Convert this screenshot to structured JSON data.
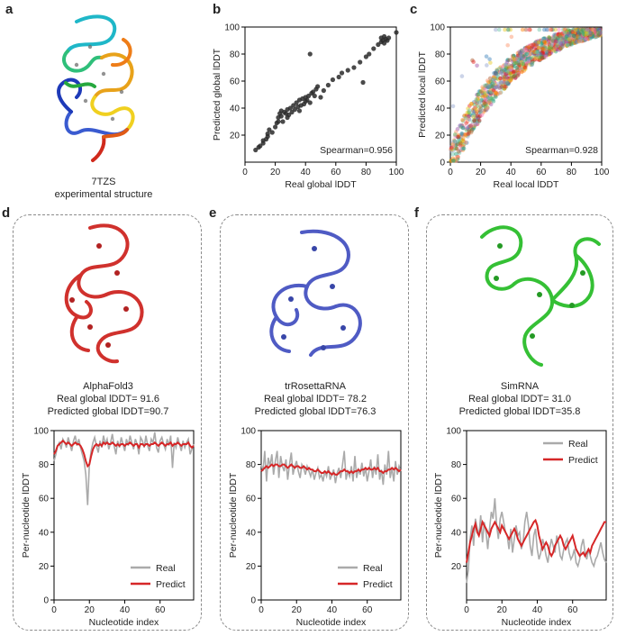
{
  "labels": {
    "a": "a",
    "b": "b",
    "c": "c",
    "d": "d",
    "e": "e",
    "f": "f"
  },
  "structure_a": {
    "line1": "7TZS",
    "line2": "experimental structure"
  },
  "models": [
    {
      "name": "AlphaFold3",
      "real": "Real global lDDT= 91.6",
      "pred": "Predicted global lDDT=90.7"
    },
    {
      "name": "trRosettaRNA",
      "real": "Real global lDDT= 78.2",
      "pred": "Predicted global lDDT=76.3"
    },
    {
      "name": "SimRNA",
      "real": "Real global lDDT= 31.0",
      "pred": "Predicted global lDDT=35.8"
    }
  ],
  "colors": {
    "real": "#aaaaaa",
    "predict": "#d62728",
    "alphafold": "#d0312d",
    "trrosetta": "#5560c8",
    "simrna": "#3cc23c"
  },
  "chart_data": [
    {
      "type": "scatter",
      "xlabel": "Real global lDDT",
      "ylabel": "Predicted global lDDT",
      "xlim": [
        0,
        100
      ],
      "ylim": [
        0,
        100
      ],
      "xticks": [
        0,
        20,
        40,
        60,
        80,
        100
      ],
      "yticks": [
        20,
        40,
        60,
        80,
        100
      ],
      "annotation": "Spearman=0.956",
      "points": [
        [
          7,
          9
        ],
        [
          9,
          11
        ],
        [
          10,
          12
        ],
        [
          12,
          14
        ],
        [
          12,
          16
        ],
        [
          14,
          17
        ],
        [
          15,
          19
        ],
        [
          15,
          21
        ],
        [
          16,
          24
        ],
        [
          18,
          22
        ],
        [
          20,
          26
        ],
        [
          21,
          29
        ],
        [
          22,
          30
        ],
        [
          22,
          33
        ],
        [
          23,
          36
        ],
        [
          24,
          34
        ],
        [
          24,
          38
        ],
        [
          25,
          30
        ],
        [
          26,
          37
        ],
        [
          27,
          36
        ],
        [
          28,
          39
        ],
        [
          28,
          33
        ],
        [
          29,
          35
        ],
        [
          30,
          40
        ],
        [
          31,
          37
        ],
        [
          32,
          42
        ],
        [
          33,
          39
        ],
        [
          34,
          44
        ],
        [
          35,
          41
        ],
        [
          36,
          46
        ],
        [
          36,
          38
        ],
        [
          37,
          42
        ],
        [
          38,
          47
        ],
        [
          39,
          43
        ],
        [
          40,
          48
        ],
        [
          40,
          45
        ],
        [
          41,
          46
        ],
        [
          42,
          49
        ],
        [
          43,
          44
        ],
        [
          44,
          51
        ],
        [
          45,
          52
        ],
        [
          46,
          49
        ],
        [
          47,
          54
        ],
        [
          48,
          56
        ],
        [
          50,
          48
        ],
        [
          43,
          80
        ],
        [
          52,
          53
        ],
        [
          55,
          57
        ],
        [
          58,
          61
        ],
        [
          62,
          63
        ],
        [
          64,
          66
        ],
        [
          68,
          68
        ],
        [
          72,
          70
        ],
        [
          76,
          74
        ],
        [
          78,
          59
        ],
        [
          80,
          78
        ],
        [
          82,
          80
        ],
        [
          85,
          84
        ],
        [
          88,
          87
        ],
        [
          90,
          89
        ],
        [
          90,
          92
        ],
        [
          91,
          90
        ],
        [
          92,
          88
        ],
        [
          92,
          93
        ],
        [
          93,
          91
        ],
        [
          94,
          90
        ],
        [
          100,
          96
        ],
        [
          95,
          92
        ]
      ]
    },
    {
      "type": "scatter",
      "xlabel": "Real local lDDT",
      "ylabel": "Predicted local lDDT",
      "xlim": [
        0,
        100
      ],
      "ylim": [
        0,
        100
      ],
      "xticks": [
        0,
        20,
        40,
        60,
        80,
        100
      ],
      "yticks": [
        0,
        20,
        40,
        60,
        80,
        100
      ],
      "annotation": "Spearman=0.928",
      "palette": [
        "#e41a1c",
        "#377eb8",
        "#4daf4a",
        "#984ea3",
        "#ff7f00",
        "#e6c619",
        "#a65628",
        "#f781bf",
        "#66c2a5",
        "#fc8d62",
        "#8da0cb",
        "#1b9e77"
      ]
    },
    {
      "type": "line",
      "xlabel": "Nucleotide index",
      "ylabel": "Per-nucleotide lDDT",
      "xlim": [
        0,
        79
      ],
      "ylim": [
        0,
        100
      ],
      "xticks": [
        0,
        20,
        40,
        60
      ],
      "yticks": [
        0,
        20,
        40,
        60,
        80,
        100
      ],
      "legend": "bottom-right",
      "series": [
        {
          "name": "Real",
          "values": [
            82,
            86,
            91,
            93,
            89,
            95,
            93,
            90,
            96,
            92,
            88,
            94,
            97,
            91,
            95,
            90,
            86,
            82,
            74,
            56,
            80,
            88,
            93,
            96,
            91,
            87,
            94,
            90,
            97,
            92,
            95,
            89,
            93,
            98,
            91,
            86,
            94,
            90,
            96,
            92,
            88,
            95,
            91,
            97,
            93,
            89,
            95,
            92,
            86,
            96,
            94,
            90,
            97,
            91,
            88,
            95,
            93,
            99,
            90,
            87,
            94,
            96,
            92,
            89,
            95,
            91,
            97,
            78,
            93,
            90,
            96,
            92,
            88,
            94,
            90,
            93,
            95,
            86,
            89,
            92
          ]
        },
        {
          "name": "Predict",
          "values": [
            86,
            88,
            91,
            92,
            93,
            94,
            93,
            92,
            93,
            92,
            91,
            92,
            93,
            92,
            92,
            91,
            89,
            86,
            82,
            79,
            80,
            85,
            89,
            91,
            92,
            91,
            92,
            91,
            93,
            92,
            93,
            92,
            92,
            93,
            92,
            91,
            92,
            91,
            92,
            92,
            91,
            92,
            92,
            93,
            92,
            91,
            92,
            92,
            90,
            92,
            92,
            91,
            92,
            92,
            91,
            92,
            92,
            93,
            92,
            91,
            92,
            93,
            92,
            91,
            92,
            92,
            93,
            91,
            92,
            92,
            93,
            92,
            91,
            92,
            92,
            92,
            93,
            91,
            90,
            91
          ]
        }
      ]
    },
    {
      "type": "line",
      "xlabel": "Nucleotide index",
      "ylabel": "Per-nucleotide lDDT",
      "xlim": [
        0,
        79
      ],
      "ylim": [
        0,
        100
      ],
      "xticks": [
        0,
        20,
        40,
        60
      ],
      "yticks": [
        0,
        20,
        40,
        60,
        80,
        100
      ],
      "legend": "bottom-right",
      "series": [
        {
          "name": "Real",
          "values": [
            80,
            76,
            88,
            70,
            84,
            79,
            86,
            74,
            82,
            88,
            72,
            85,
            79,
            76,
            83,
            71,
            80,
            87,
            74,
            79,
            82,
            76,
            72,
            80,
            78,
            74,
            79,
            76,
            73,
            77,
            71,
            75,
            78,
            72,
            74,
            70,
            76,
            73,
            79,
            71,
            74,
            77,
            69,
            75,
            78,
            72,
            80,
            88,
            71,
            76,
            73,
            79,
            70,
            85,
            72,
            77,
            74,
            81,
            73,
            78,
            70,
            76,
            83,
            72,
            79,
            74,
            86,
            71,
            77,
            68,
            80,
            74,
            88,
            72,
            78,
            70,
            82,
            74,
            79,
            76
          ]
        },
        {
          "name": "Predict",
          "values": [
            76,
            77,
            78,
            79,
            78,
            79,
            80,
            79,
            80,
            80,
            79,
            79,
            80,
            80,
            79,
            78,
            79,
            80,
            79,
            78,
            79,
            79,
            78,
            78,
            79,
            78,
            77,
            78,
            77,
            77,
            76,
            76,
            77,
            76,
            75,
            75,
            76,
            75,
            76,
            75,
            74,
            75,
            74,
            74,
            75,
            76,
            76,
            77,
            76,
            76,
            75,
            76,
            75,
            76,
            76,
            77,
            76,
            77,
            77,
            78,
            77,
            78,
            77,
            77,
            78,
            77,
            78,
            76,
            76,
            75,
            76,
            76,
            77,
            77,
            78,
            77,
            78,
            77,
            76,
            77
          ]
        }
      ]
    },
    {
      "type": "line",
      "xlabel": "Nucleotide index",
      "ylabel": "Per-nucleotide lDDT",
      "xlim": [
        0,
        79
      ],
      "ylim": [
        0,
        100
      ],
      "xticks": [
        0,
        20,
        40,
        60
      ],
      "yticks": [
        20,
        40,
        60,
        80,
        100
      ],
      "legend": "top-right",
      "series": [
        {
          "name": "Real",
          "values": [
            10,
            18,
            36,
            44,
            32,
            48,
            42,
            38,
            50,
            34,
            46,
            40,
            30,
            42,
            52,
            48,
            60,
            44,
            36,
            48,
            52,
            46,
            40,
            38,
            30,
            42,
            28,
            36,
            44,
            38,
            40,
            30,
            34,
            46,
            52,
            44,
            32,
            26,
            38,
            42,
            30,
            24,
            28,
            36,
            32,
            26,
            22,
            30,
            36,
            32,
            28,
            38,
            34,
            26,
            24,
            30,
            34,
            36,
            28,
            24,
            26,
            30,
            22,
            20,
            24,
            32,
            36,
            28,
            24,
            30,
            26,
            22,
            20,
            24,
            26,
            30,
            34,
            28,
            24,
            22
          ]
        },
        {
          "name": "Predict",
          "values": [
            22,
            28,
            34,
            38,
            42,
            45,
            40,
            38,
            42,
            46,
            44,
            42,
            40,
            38,
            42,
            44,
            46,
            44,
            42,
            40,
            44,
            42,
            40,
            38,
            36,
            38,
            40,
            42,
            40,
            36,
            34,
            32,
            34,
            36,
            38,
            40,
            42,
            44,
            46,
            47,
            44,
            38,
            34,
            30,
            32,
            34,
            32,
            28,
            26,
            28,
            32,
            34,
            36,
            38,
            36,
            32,
            30,
            32,
            34,
            36,
            38,
            34,
            30,
            28,
            26,
            27,
            28,
            26,
            28,
            30,
            28,
            32,
            34,
            36,
            38,
            40,
            42,
            44,
            46,
            46
          ]
        }
      ]
    }
  ],
  "scatter_c_count": 1400
}
